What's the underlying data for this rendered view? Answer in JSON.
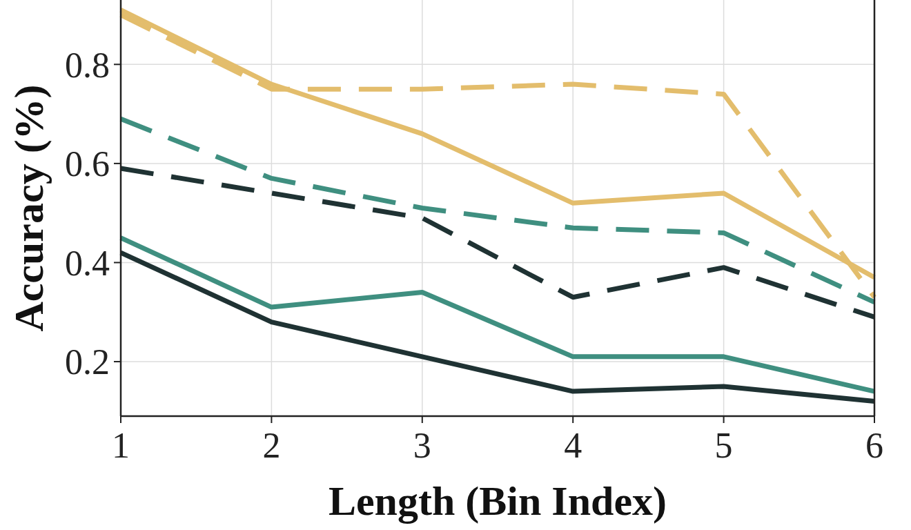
{
  "chart_data": {
    "type": "line",
    "xlabel": "Length (Bin Index)",
    "ylabel": "Accuracy (%)",
    "x": [
      1,
      2,
      3,
      4,
      5,
      6
    ],
    "xlim": [
      1,
      6
    ],
    "xticks": [
      1,
      2,
      3,
      4,
      5,
      6
    ],
    "ylim": [
      0.09,
      0.93
    ],
    "yticks": [
      0.2,
      0.4,
      0.6,
      0.8
    ],
    "grid": true,
    "series": [
      {
        "color": "#1f3233",
        "line_style": "solid",
        "values": [
          0.42,
          0.28,
          0.21,
          0.14,
          0.15,
          0.12
        ]
      },
      {
        "color": "#1f3233",
        "line_style": "dashed",
        "values": [
          0.59,
          0.54,
          0.49,
          0.33,
          0.39,
          0.29
        ]
      },
      {
        "color": "#3f8f80",
        "line_style": "solid",
        "values": [
          0.45,
          0.31,
          0.34,
          0.21,
          0.21,
          0.14
        ]
      },
      {
        "color": "#3f8f80",
        "line_style": "dashed",
        "values": [
          0.69,
          0.57,
          0.51,
          0.47,
          0.46,
          0.32
        ]
      },
      {
        "color": "#e3bd6c",
        "line_style": "dashed",
        "values": [
          0.9,
          0.75,
          0.75,
          0.76,
          0.74,
          0.33
        ]
      },
      {
        "color": "#e3bd6c",
        "line_style": "solid",
        "values": [
          0.91,
          0.76,
          0.66,
          0.52,
          0.54,
          0.37
        ]
      }
    ]
  }
}
